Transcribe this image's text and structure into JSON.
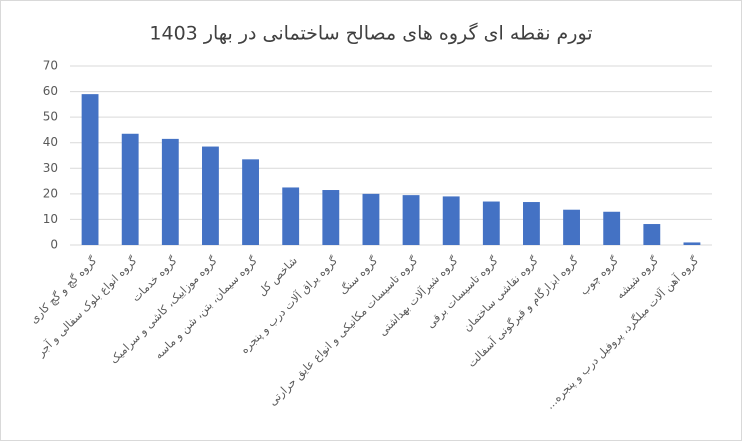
{
  "chart_data": {
    "type": "bar",
    "title": "تورم نقطه ای گروه های مصالح ساختمانی در بهار 1403",
    "categories": [
      "گروه گچ و گچ کاری",
      "گروه انواع بلوک سفالی و آجر",
      "گروه خدمات",
      "گروه موزاییک، کاشی و سرامیک",
      "گروه سیمان، بتن، شن و ماسه",
      "شاخص کل",
      "گروه یراق آلات درب و پنجره",
      "گروه سنگ",
      "گروه تاسیسات مکانیکی و انواع عایق حرارتی",
      "گروه شیرآلات بهداشتی",
      "گروه تاسیسات برقی",
      "گروه نقاشی ساختمان",
      "گروه ابزارگام و قیرگونی آسفالت",
      "گروه چوب",
      "گروه شیشه",
      "گروه آهن آلات میلگرد، پروفیل درب و پنجره..."
    ],
    "values": [
      59,
      43.5,
      41.5,
      38.5,
      33.5,
      22.5,
      21.5,
      20,
      19.5,
      19,
      17,
      16.8,
      13.8,
      13,
      8.2,
      1
    ],
    "color": "#4472c4",
    "ylim": [
      0,
      70
    ],
    "yticks": [
      0,
      10,
      20,
      30,
      40,
      50,
      60,
      70
    ],
    "grid": true
  }
}
